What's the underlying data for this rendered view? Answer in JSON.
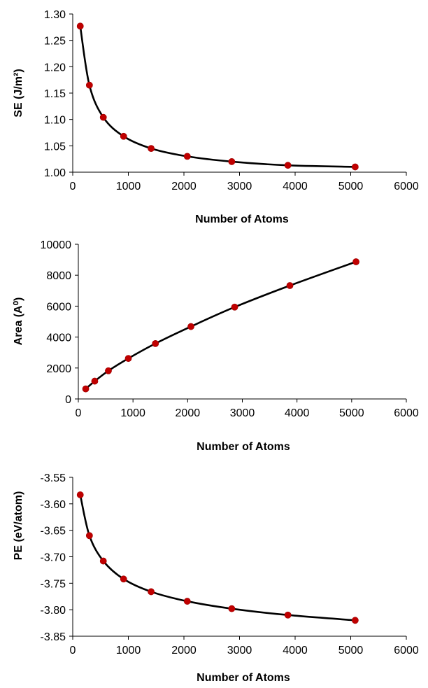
{
  "chart_data": [
    {
      "type": "scatter",
      "title": "",
      "xlabel": "Number of Atoms",
      "ylabel": "SE (J/m²)",
      "xlim": [
        0,
        6000
      ],
      "ylim": [
        1.0,
        1.3
      ],
      "xticks": [
        "0",
        "1000",
        "2000",
        "3000",
        "4000",
        "5000",
        "6000"
      ],
      "yticks": [
        "1.00",
        "1.05",
        "1.10",
        "1.15",
        "1.20",
        "1.25",
        "1.30"
      ],
      "grid": false,
      "point_color": "#c00000",
      "line_color": "#000000",
      "x": [
        135,
        300,
        550,
        915,
        1410,
        2060,
        2860,
        3870,
        5080
      ],
      "y": [
        1.277,
        1.165,
        1.104,
        1.068,
        1.045,
        1.03,
        1.02,
        1.013,
        1.01
      ]
    },
    {
      "type": "scatter",
      "title": "",
      "xlabel": "Number of  Atoms",
      "ylabel": "Area (A⁰)",
      "xlim": [
        0,
        6000
      ],
      "ylim": [
        0,
        10000
      ],
      "xticks": [
        "0",
        "1000",
        "2000",
        "3000",
        "4000",
        "5000",
        "6000"
      ],
      "yticks": [
        "0",
        "2000",
        "4000",
        "6000",
        "8000",
        "10000"
      ],
      "grid": false,
      "point_color": "#c00000",
      "line_color": "#000000",
      "x": [
        135,
        300,
        550,
        915,
        1410,
        2060,
        2860,
        3870,
        5080
      ],
      "y": [
        650,
        1150,
        1820,
        2620,
        3580,
        4680,
        5940,
        7330,
        8870
      ]
    },
    {
      "type": "scatter",
      "title": "",
      "xlabel": "Number of Atoms",
      "ylabel": "PE (eV/atom)",
      "xlim": [
        0,
        6000
      ],
      "ylim": [
        -3.85,
        -3.55
      ],
      "xticks": [
        "0",
        "1000",
        "2000",
        "3000",
        "4000",
        "5000",
        "6000"
      ],
      "yticks": [
        "-3.55",
        "-3.60",
        "-3.65",
        "-3.70",
        "-3.75",
        "-3.80",
        "-3.85"
      ],
      "grid": false,
      "point_color": "#c00000",
      "line_color": "#000000",
      "x": [
        135,
        300,
        550,
        915,
        1410,
        2060,
        2860,
        3870,
        5080
      ],
      "y": [
        -3.583,
        -3.66,
        -3.708,
        -3.742,
        -3.766,
        -3.784,
        -3.798,
        -3.81,
        -3.82
      ]
    }
  ]
}
